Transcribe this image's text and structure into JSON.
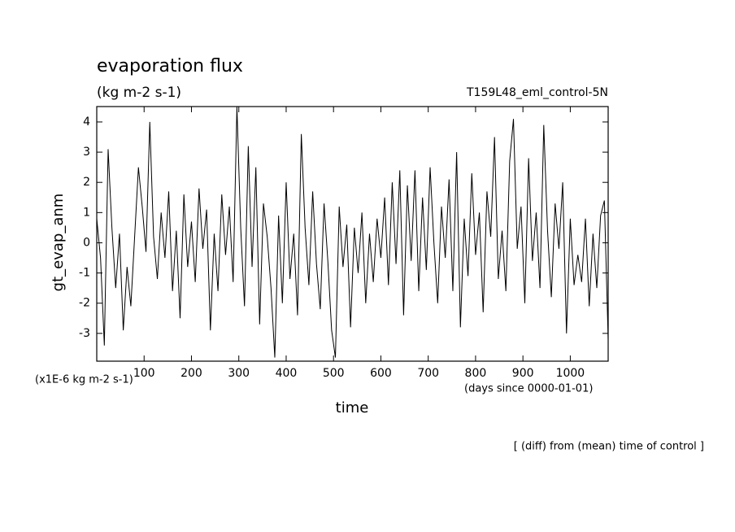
{
  "chart_data": {
    "type": "line",
    "title": "evaporation flux",
    "subtitle": "(kg m-2 s-1)",
    "run_label": "T159L48_eml_control-5N",
    "y_label": "gt_evap_anm",
    "x_label": "time",
    "y_unit": "(x1E-6 kg m-2 s-1)",
    "x_unit": "(days since 0000-01-01)",
    "note": "[ (diff) from (mean) time of control ]",
    "color": "#000000",
    "xlim": [
      0,
      1080
    ],
    "ylim": [
      -3.92,
      4.51
    ],
    "xticks": [
      100,
      200,
      300,
      400,
      500,
      600,
      700,
      800,
      900,
      1000
    ],
    "yticks": [
      -3,
      -2,
      -1,
      0,
      1,
      2,
      3,
      4
    ],
    "x": [
      0,
      8,
      16,
      24,
      32,
      40,
      48,
      56,
      64,
      72,
      80,
      88,
      96,
      104,
      112,
      120,
      128,
      136,
      144,
      152,
      160,
      168,
      176,
      184,
      192,
      200,
      208,
      216,
      224,
      232,
      240,
      248,
      256,
      264,
      272,
      280,
      288,
      296,
      304,
      312,
      320,
      328,
      336,
      344,
      352,
      360,
      368,
      376,
      384,
      392,
      400,
      408,
      416,
      424,
      432,
      440,
      448,
      456,
      464,
      472,
      480,
      488,
      496,
      504,
      512,
      520,
      528,
      536,
      544,
      552,
      560,
      568,
      576,
      584,
      592,
      600,
      608,
      616,
      624,
      632,
      640,
      648,
      656,
      664,
      672,
      680,
      688,
      696,
      704,
      712,
      720,
      728,
      736,
      744,
      752,
      760,
      768,
      776,
      784,
      792,
      800,
      808,
      816,
      824,
      832,
      840,
      848,
      856,
      864,
      872,
      880,
      888,
      896,
      904,
      912,
      920,
      928,
      936,
      944,
      952,
      960,
      968,
      976,
      984,
      992,
      1000,
      1008,
      1016,
      1024,
      1032,
      1040,
      1048,
      1056,
      1064,
      1072,
      1080
    ],
    "values": [
      0.8,
      -0.5,
      -3.4,
      3.1,
      0.5,
      -1.5,
      0.3,
      -2.9,
      -0.8,
      -2.1,
      0.2,
      2.5,
      1.2,
      -0.3,
      4.0,
      0.2,
      -1.2,
      1.0,
      -0.5,
      1.7,
      -1.6,
      0.4,
      -2.5,
      1.6,
      -0.8,
      0.7,
      -1.3,
      1.8,
      -0.2,
      1.1,
      -2.9,
      0.3,
      -1.6,
      1.6,
      -0.4,
      1.2,
      -1.3,
      4.5,
      0.5,
      -2.1,
      3.2,
      -0.8,
      2.5,
      -2.7,
      1.3,
      0.2,
      -1.5,
      -3.8,
      0.9,
      -2.0,
      2.0,
      -1.2,
      0.3,
      -2.4,
      3.6,
      0.5,
      -1.4,
      1.7,
      -0.7,
      -2.2,
      1.3,
      -0.6,
      -2.9,
      -3.8,
      1.2,
      -0.8,
      0.6,
      -2.8,
      0.5,
      -1.0,
      1.0,
      -2.0,
      0.3,
      -1.3,
      0.8,
      -0.5,
      1.5,
      -1.4,
      2.0,
      -0.7,
      2.4,
      -2.4,
      1.9,
      -0.6,
      2.4,
      -1.6,
      1.5,
      -0.9,
      2.5,
      0.0,
      -2.0,
      1.2,
      -0.5,
      2.1,
      -1.6,
      3.0,
      -2.8,
      0.8,
      -1.1,
      2.3,
      -0.4,
      1.0,
      -2.3,
      1.7,
      0.2,
      3.5,
      -1.2,
      0.4,
      -1.6,
      2.7,
      4.1,
      -0.2,
      1.2,
      -2.0,
      2.8,
      -0.6,
      1.0,
      -1.5,
      3.9,
      0.4,
      -1.8,
      1.3,
      -0.2,
      2.0,
      -3.0,
      0.8,
      -1.4,
      -0.4,
      -1.3,
      0.8,
      -2.1,
      0.3,
      -1.5,
      0.9,
      1.4,
      -3.2
    ]
  }
}
